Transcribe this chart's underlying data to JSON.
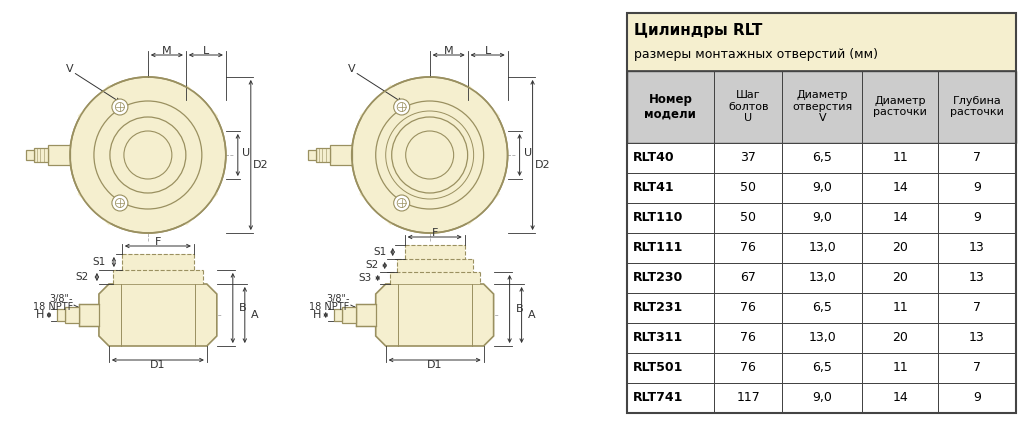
{
  "title_line1": "Цилиндры RLT",
  "title_line2": "размеры монтажных отверстий (мм)",
  "col_headers": [
    "Номер\nмодели",
    "Шаг\nболтов\nU",
    "Диаметр\nотверстия\nV",
    "Диаметр\nрасточки",
    "Глубина\nрасточки"
  ],
  "rows": [
    [
      "RLT40",
      "37",
      "6,5",
      "11",
      "7"
    ],
    [
      "RLT41",
      "50",
      "9,0",
      "14",
      "9"
    ],
    [
      "RLT110",
      "50",
      "9,0",
      "14",
      "9"
    ],
    [
      "RLT111",
      "76",
      "13,0",
      "20",
      "13"
    ],
    [
      "RLT230",
      "67",
      "13,0",
      "20",
      "13"
    ],
    [
      "RLT231",
      "76",
      "6,5",
      "11",
      "7"
    ],
    [
      "RLT311",
      "76",
      "13,0",
      "20",
      "13"
    ],
    [
      "RLT501",
      "76",
      "6,5",
      "11",
      "7"
    ],
    [
      "RLT741",
      "117",
      "9,0",
      "14",
      "9"
    ]
  ],
  "bg_color": "#ffffff",
  "table_header_bg": "#f5efcf",
  "col_header_bg": "#cccccc",
  "border_color": "#444444",
  "title_color": "#000000",
  "text_color": "#000000",
  "draw_fill": "#f5efcf",
  "draw_line": "#9a9060",
  "dim_color": "#333333"
}
